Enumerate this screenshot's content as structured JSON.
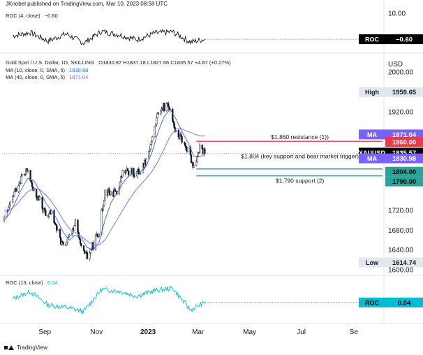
{
  "header": {
    "published": "JKnobel published on TradingView.com, Mar 10, 2023 08:58 UTC"
  },
  "footer": {
    "brand": "TradingView"
  },
  "colors": {
    "price": "#131722",
    "ma10": "#2962ff",
    "ma40": "#7b61ff",
    "resistance": "#f23645",
    "support": "#26a69a",
    "roc_top": "#131722",
    "roc_bottom": "#00bcd4",
    "guide": "#787b86",
    "pane_border": "#e0e3eb"
  },
  "chart_data": [
    {
      "type": "line",
      "pane": "roc-top",
      "legend": {
        "label": "ROC",
        "params": "(4, close)",
        "value": "−0.60"
      },
      "axis_ticks": [
        "10.00"
      ],
      "guide_value": -0.6,
      "label_tag": {
        "name": "ROC",
        "value": "−0.60"
      },
      "series": [
        {
          "x": [
            "2022-07-25",
            "2022-08-15",
            "2022-09-05",
            "2022-09-26",
            "2022-10-17",
            "2022-11-07",
            "2022-11-28",
            "2022-12-19",
            "2023-01-09",
            "2023-01-30",
            "2023-02-20",
            "2023-03-09"
          ],
          "values": [
            0.8,
            2.1,
            -1.4,
            1.6,
            -2.2,
            2.6,
            1.2,
            -0.8,
            1.9,
            2.4,
            -1.8,
            -0.6
          ]
        }
      ],
      "ylim": [
        -4,
        12
      ]
    },
    {
      "type": "candlestick",
      "pane": "price",
      "title": "Gold Spot / U.S. Dollar, 1D, SKILLING",
      "ohlc_readout": "O1830.87 H1837.18 L1827.66 C1835.57 +4.87 (+0.27%)",
      "ma_legends": [
        {
          "label": "MA",
          "params": "(10, close, 0, SMA, 5)",
          "value": "1830.98"
        },
        {
          "label": "MA",
          "params": "(40, close, 0, SMA, 5)",
          "value": "1871.04"
        }
      ],
      "axis_label": "USD",
      "y_ticks": [
        "2000.00",
        "1920.00",
        "1720.00",
        "1680.00",
        "1640.00",
        "1600.00"
      ],
      "x_ticks": [
        "Sep",
        "Nov",
        "2023",
        "Mar",
        "May",
        "Jul",
        "Se"
      ],
      "ylim": [
        1590,
        2030
      ],
      "price_path": {
        "x": [
          "2022-07-15",
          "2022-07-22",
          "2022-07-29",
          "2022-08-05",
          "2022-08-12",
          "2022-08-19",
          "2022-08-26",
          "2022-09-02",
          "2022-09-09",
          "2022-09-16",
          "2022-09-23",
          "2022-09-30",
          "2022-10-07",
          "2022-10-14",
          "2022-10-21",
          "2022-10-28",
          "2022-11-04",
          "2022-11-11",
          "2022-11-18",
          "2022-11-25",
          "2022-12-02",
          "2022-12-09",
          "2022-12-16",
          "2022-12-23",
          "2022-12-30",
          "2023-01-06",
          "2023-01-13",
          "2023-01-20",
          "2023-01-27",
          "2023-02-03",
          "2023-02-10",
          "2023-02-17",
          "2023-02-24",
          "2023-03-03",
          "2023-03-09"
        ],
        "close": [
          1700,
          1730,
          1765,
          1790,
          1800,
          1755,
          1740,
          1710,
          1715,
          1675,
          1645,
          1665,
          1695,
          1640,
          1625,
          1650,
          1680,
          1760,
          1755,
          1755,
          1795,
          1800,
          1795,
          1800,
          1825,
          1865,
          1920,
          1930,
          1930,
          1875,
          1865,
          1840,
          1810,
          1845,
          1835.57
        ]
      },
      "ma10": [
        1700,
        1715,
        1740,
        1765,
        1785,
        1780,
        1760,
        1735,
        1720,
        1700,
        1675,
        1660,
        1670,
        1665,
        1645,
        1640,
        1655,
        1700,
        1735,
        1755,
        1775,
        1790,
        1795,
        1798,
        1810,
        1840,
        1880,
        1910,
        1925,
        1905,
        1880,
        1858,
        1830,
        1830,
        1830.98
      ],
      "ma40": [
        1720,
        1722,
        1730,
        1745,
        1758,
        1765,
        1762,
        1752,
        1738,
        1720,
        1700,
        1683,
        1675,
        1668,
        1658,
        1650,
        1650,
        1660,
        1680,
        1700,
        1720,
        1740,
        1758,
        1772,
        1785,
        1800,
        1820,
        1845,
        1870,
        1885,
        1885,
        1880,
        1875,
        1871,
        1871.04
      ],
      "levels": [
        {
          "label": "$1,860 resistance (1))",
          "value": 1860,
          "tag": "1860.00",
          "role": "resistance"
        },
        {
          "label": "$1,804 (key support and bear market trigger)",
          "value": 1804,
          "tag": "1804.00",
          "role": "support"
        },
        {
          "label": "$1,790 support (2)",
          "value": 1790,
          "tag": "1790.00",
          "role": "support"
        }
      ],
      "tags": {
        "high": {
          "name": "High",
          "value": "1959.65"
        },
        "low": {
          "name": "Low",
          "value": "1614.74"
        },
        "ma40": {
          "name": "MA",
          "value": "1871.04"
        },
        "symbol": {
          "name": "XAUUSD",
          "value": "1835.57"
        },
        "ma10": {
          "name": "MA",
          "value": "1830.98"
        }
      },
      "last_close": 1835.57
    },
    {
      "type": "line",
      "pane": "roc-bottom",
      "legend": {
        "label": "ROC",
        "params": "(13, close)",
        "value": "0.04"
      },
      "label_tag": {
        "name": "ROC",
        "value": "0.04"
      },
      "guide_value": 0.04,
      "series": [
        {
          "x": [
            "2022-07-25",
            "2022-08-15",
            "2022-09-05",
            "2022-09-26",
            "2022-10-17",
            "2022-11-07",
            "2022-11-28",
            "2022-12-19",
            "2023-01-09",
            "2023-01-30",
            "2023-02-20",
            "2023-03-09"
          ],
          "values": [
            1.2,
            3.5,
            -0.8,
            -1.5,
            -2.8,
            4.2,
            3.6,
            2.1,
            3.8,
            4.6,
            -2.4,
            0.04
          ]
        }
      ],
      "ylim": [
        -6,
        8
      ]
    }
  ]
}
